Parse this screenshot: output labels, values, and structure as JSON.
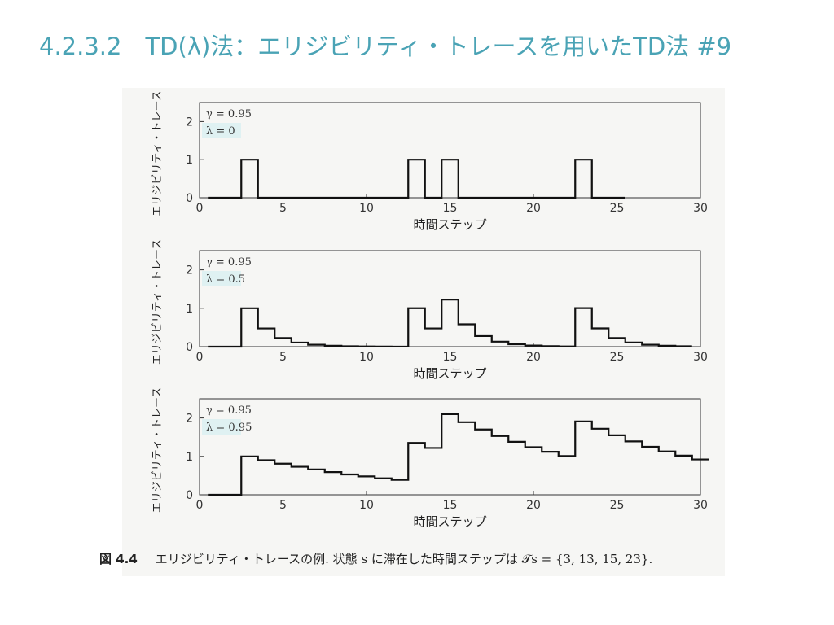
{
  "slide": {
    "title": "4.2.3.2　TD(λ)法：エリジビリティ・トレースを用いたTD法 #9"
  },
  "caption": {
    "fig_number": "図 4.4",
    "text": "エリジビリティ・トレースの例. 状態 s に滞在した時間ステップは 𝒯s = {3, 13, 15, 23}."
  },
  "chart_data": [
    {
      "type": "line",
      "step": true,
      "annotations": [
        "γ = 0.95",
        "λ = 0"
      ],
      "xlabel": "時間ステップ",
      "ylabel": "エリジビリティ・トレース",
      "xlim": [
        0,
        30
      ],
      "ylim": [
        0,
        2.5
      ],
      "xticks": [
        0,
        5,
        10,
        15,
        20,
        25,
        30
      ],
      "yticks": [
        0,
        1,
        2
      ],
      "visit_times": [
        3,
        13,
        15,
        23
      ],
      "series": [
        {
          "x": [
            1,
            2,
            3,
            4,
            5,
            6,
            7,
            8,
            9,
            10,
            11,
            12,
            13,
            14,
            15,
            16,
            17,
            18,
            19,
            20,
            21,
            22,
            23,
            24,
            25
          ],
          "values": [
            0,
            0,
            1,
            0,
            0,
            0,
            0,
            0,
            0,
            0,
            0,
            0,
            1,
            0,
            1,
            0,
            0,
            0,
            0,
            0,
            0,
            0,
            1,
            0,
            0
          ]
        }
      ]
    },
    {
      "type": "line",
      "step": true,
      "annotations": [
        "γ = 0.95",
        "λ = 0.5"
      ],
      "xlabel": "時間ステップ",
      "ylabel": "エリジビリティ・トレース",
      "xlim": [
        0,
        30
      ],
      "ylim": [
        0,
        2.5
      ],
      "xticks": [
        0,
        5,
        10,
        15,
        20,
        25,
        30
      ],
      "yticks": [
        0,
        1,
        2
      ],
      "visit_times": [
        3,
        13,
        15,
        23
      ],
      "series": [
        {
          "x": [
            1,
            2,
            3,
            4,
            5,
            6,
            7,
            8,
            9,
            10,
            11,
            12,
            13,
            14,
            15,
            16,
            17,
            18,
            19,
            20,
            21,
            22,
            23,
            24,
            25,
            26,
            27,
            28,
            29
          ],
          "values": [
            0,
            0,
            1,
            0.475,
            0.226,
            0.107,
            0.051,
            0.024,
            0.011,
            0.005,
            0.003,
            0.001,
            1.001,
            0.475,
            1.226,
            0.582,
            0.277,
            0.131,
            0.062,
            0.03,
            0.014,
            0.007,
            1.003,
            0.477,
            0.226,
            0.108,
            0.051,
            0.024,
            0.011
          ]
        }
      ]
    },
    {
      "type": "line",
      "step": true,
      "annotations": [
        "γ = 0.95",
        "λ = 0.95"
      ],
      "xlabel": "時間ステップ",
      "ylabel": "エリジビリティ・トレース",
      "xlim": [
        0,
        30
      ],
      "ylim": [
        0,
        2.5
      ],
      "xticks": [
        0,
        5,
        10,
        15,
        20,
        25,
        30
      ],
      "yticks": [
        0,
        1,
        2
      ],
      "visit_times": [
        3,
        13,
        15,
        23
      ],
      "series": [
        {
          "x": [
            1,
            2,
            3,
            4,
            5,
            6,
            7,
            8,
            9,
            10,
            11,
            12,
            13,
            14,
            15,
            16,
            17,
            18,
            19,
            20,
            21,
            22,
            23,
            24,
            25,
            26,
            27,
            28,
            29,
            30
          ],
          "values": [
            0,
            0,
            1,
            0.9,
            0.81,
            0.73,
            0.66,
            0.59,
            0.53,
            0.48,
            0.43,
            0.39,
            1.35,
            1.22,
            2.1,
            1.89,
            1.7,
            1.53,
            1.38,
            1.24,
            1.12,
            1.01,
            1.91,
            1.72,
            1.55,
            1.39,
            1.25,
            1.13,
            1.02,
            0.92
          ]
        }
      ]
    }
  ]
}
